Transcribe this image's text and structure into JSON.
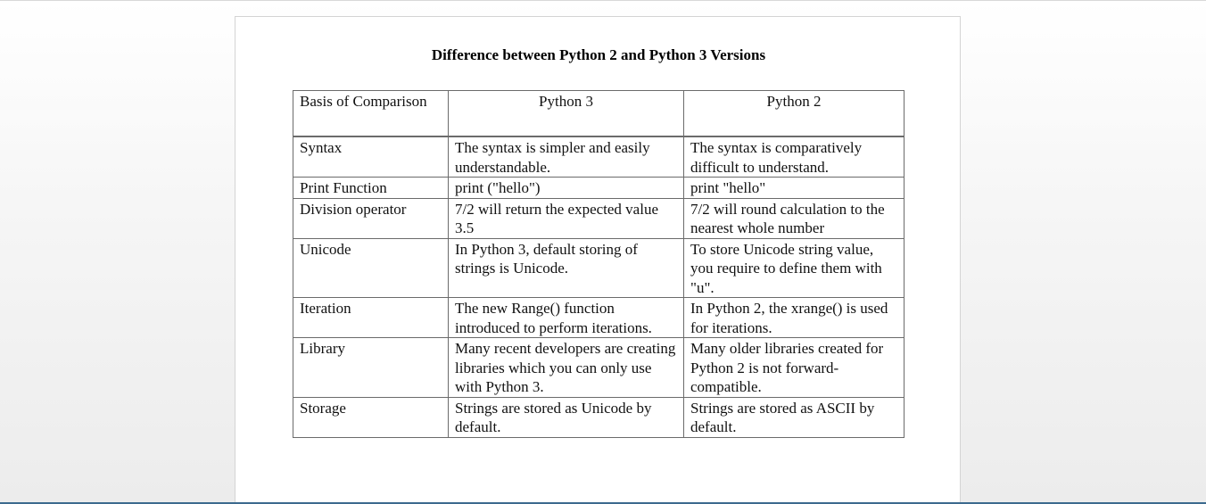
{
  "document": {
    "title": "Difference between Python 2 and Python 3 Versions"
  },
  "table": {
    "headers": [
      "Basis of Comparison",
      "Python 3",
      "Python 2"
    ],
    "rows": [
      [
        "Syntax",
        "The syntax is simpler and easily understandable.",
        "The syntax is comparatively difficult to understand."
      ],
      [
        "Print Function",
        "print (\"hello\")",
        "print \"hello\""
      ],
      [
        "Division operator",
        "7/2 will return the expected value 3.5",
        "7/2 will round calculation to the nearest whole number"
      ],
      [
        "Unicode",
        "In Python 3, default storing of strings is Unicode.",
        "To store Unicode string value, you require to define them with \"u\"."
      ],
      [
        "Iteration",
        "The new Range() function introduced to perform iterations.",
        "In Python 2, the xrange() is used for iterations."
      ],
      [
        "Library",
        "Many recent developers are creating libraries which you can only use with Python 3.",
        "Many older libraries created for Python 2 is not forward-compatible."
      ],
      [
        "Storage",
        "Strings are stored as Unicode by default.",
        "Strings are stored as ASCII by default."
      ]
    ]
  }
}
